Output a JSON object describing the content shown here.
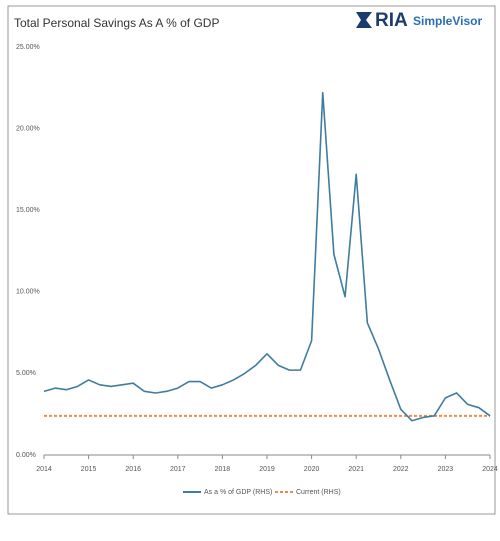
{
  "chart_data": {
    "type": "line",
    "title": "Total Personal Savings As A % of GDP",
    "logo": {
      "brand": "RIA",
      "product": "SimpleVisor"
    },
    "x": [
      2014,
      2014.25,
      2014.5,
      2014.75,
      2015,
      2015.25,
      2015.5,
      2015.75,
      2016,
      2016.25,
      2016.5,
      2016.75,
      2017,
      2017.25,
      2017.5,
      2017.75,
      2018,
      2018.25,
      2018.5,
      2018.75,
      2019,
      2019.25,
      2019.5,
      2019.75,
      2020,
      2020.25,
      2020.5,
      2020.75,
      2021,
      2021.25,
      2021.5,
      2021.75,
      2022,
      2022.25,
      2022.5,
      2022.75,
      2023,
      2023.25,
      2023.5,
      2023.75,
      2024
    ],
    "series": [
      {
        "name": "As a % of GDP (RHS)",
        "color": "#3f7ca0",
        "values": [
          3.9,
          4.1,
          4.0,
          4.2,
          4.6,
          4.3,
          4.2,
          4.3,
          4.4,
          3.9,
          3.8,
          3.9,
          4.1,
          4.5,
          4.5,
          4.1,
          4.3,
          4.6,
          5.0,
          5.5,
          6.2,
          5.5,
          5.2,
          5.2,
          7.0,
          22.2,
          12.3,
          9.7,
          17.2,
          8.1,
          6.5,
          4.6,
          2.8,
          2.1,
          2.3,
          2.4,
          3.5,
          3.8,
          3.1,
          2.9,
          2.4
        ]
      }
    ],
    "reference_line": {
      "name": "Current (RHS)",
      "value": 2.4,
      "color": "#f0894a",
      "dashed": true
    },
    "xlim": [
      2014,
      2024
    ],
    "xticks": [
      2014,
      2015,
      2016,
      2017,
      2018,
      2019,
      2020,
      2021,
      2022,
      2023,
      2024
    ],
    "ylim": [
      0,
      25
    ],
    "yticks": [
      {
        "value": 0,
        "label": "0.00%"
      },
      {
        "value": 5,
        "label": "5.00%"
      },
      {
        "value": 10,
        "label": "10.00%"
      },
      {
        "value": 15,
        "label": "15.00%"
      },
      {
        "value": 20,
        "label": "20.00%"
      },
      {
        "value": 25,
        "label": "25.00%"
      }
    ],
    "grid": false,
    "legend": "bottom"
  }
}
